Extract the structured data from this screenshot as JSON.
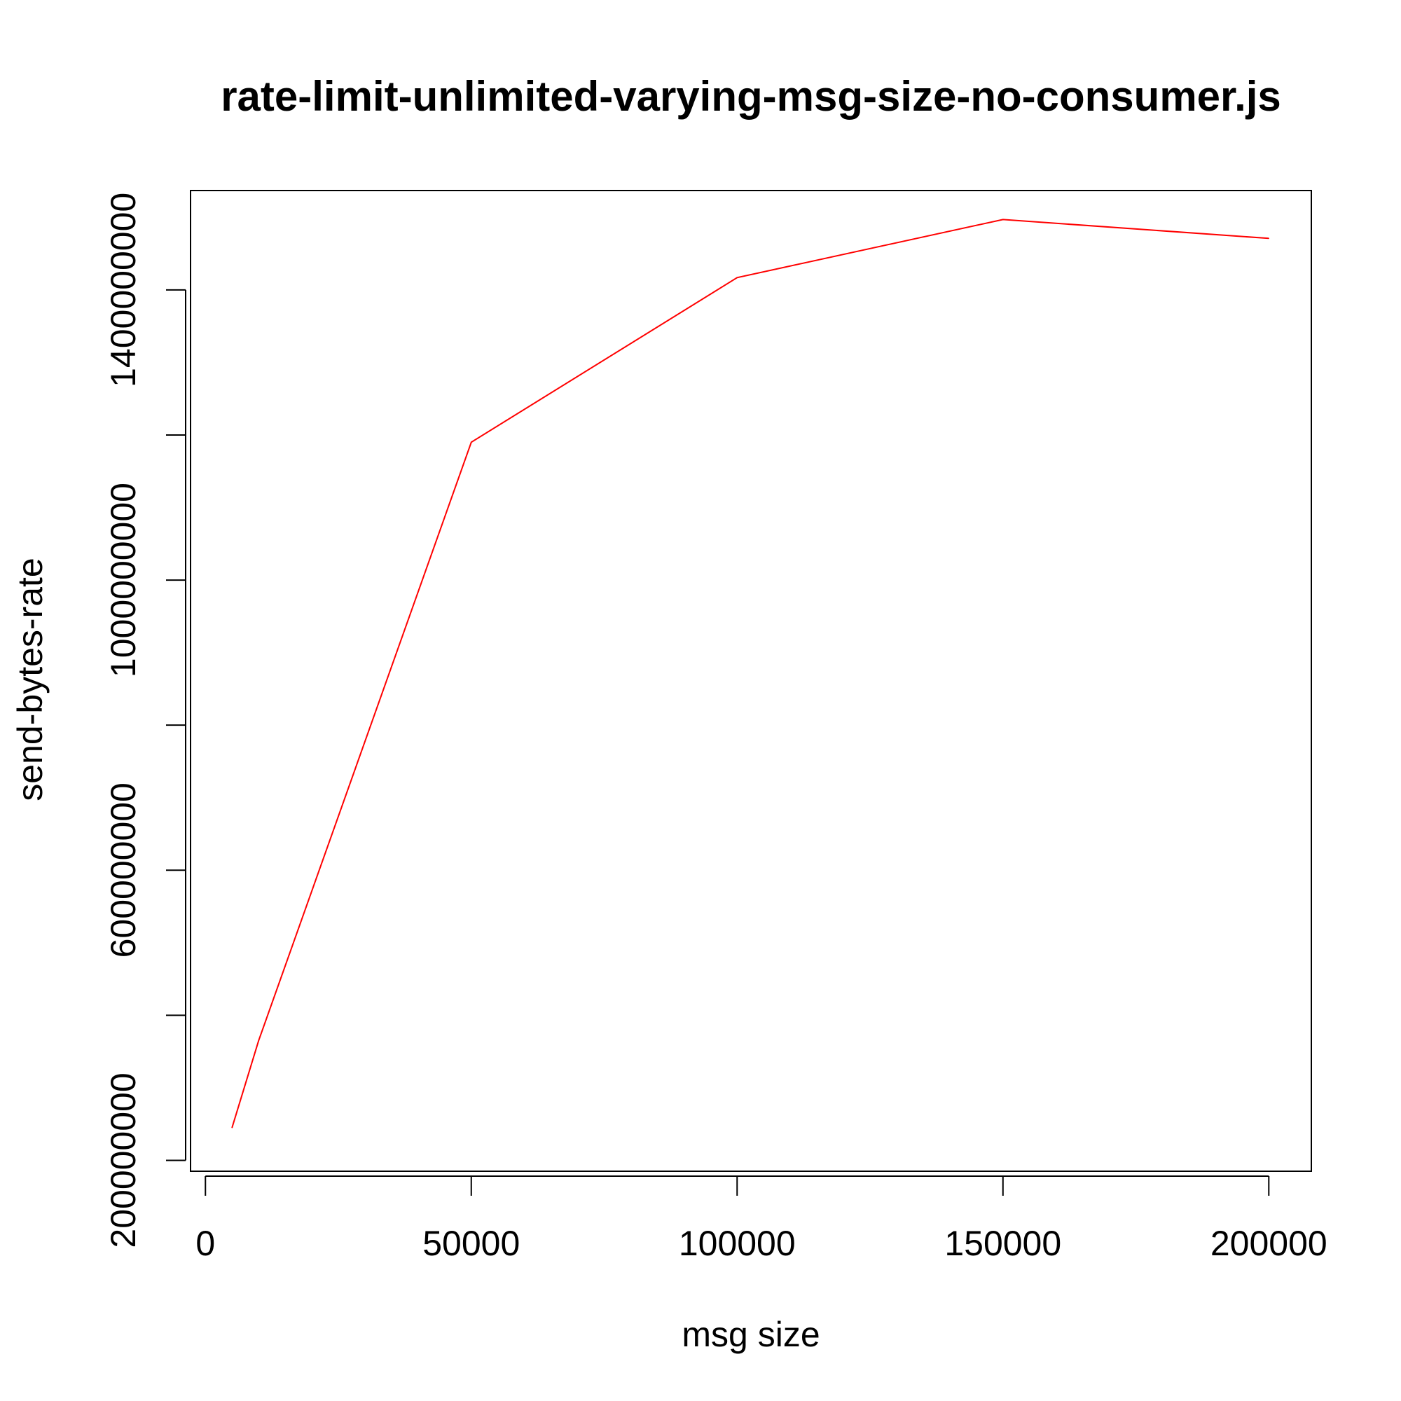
{
  "chart_data": {
    "type": "line",
    "title": "rate-limit-unlimited-varying-msg-size-no-consumer.js",
    "xlabel": "msg size",
    "ylabel": "send-bytes-rate",
    "xlim": [
      -2800,
      208000
    ],
    "ylim": [
      185000000,
      1537000000
    ],
    "x_ticks": [
      0,
      50000,
      100000,
      150000,
      200000
    ],
    "x_tick_labels": [
      "0",
      "50000",
      "100000",
      "150000",
      "200000"
    ],
    "y_ticks": [
      200000000,
      400000000,
      600000000,
      800000000,
      1000000000,
      1200000000,
      1400000000
    ],
    "y_tick_labels": [
      "200000000",
      "",
      "600000000",
      "",
      "1000000000",
      "",
      "1400000000"
    ],
    "grid": false,
    "series": [
      {
        "color": "#ff0000",
        "x": [
          5000,
          10000,
          50000,
          100000,
          150000,
          200000
        ],
        "y": [
          245000000,
          365000000,
          1190000000,
          1417000000,
          1497000000,
          1471000000
        ]
      }
    ]
  }
}
